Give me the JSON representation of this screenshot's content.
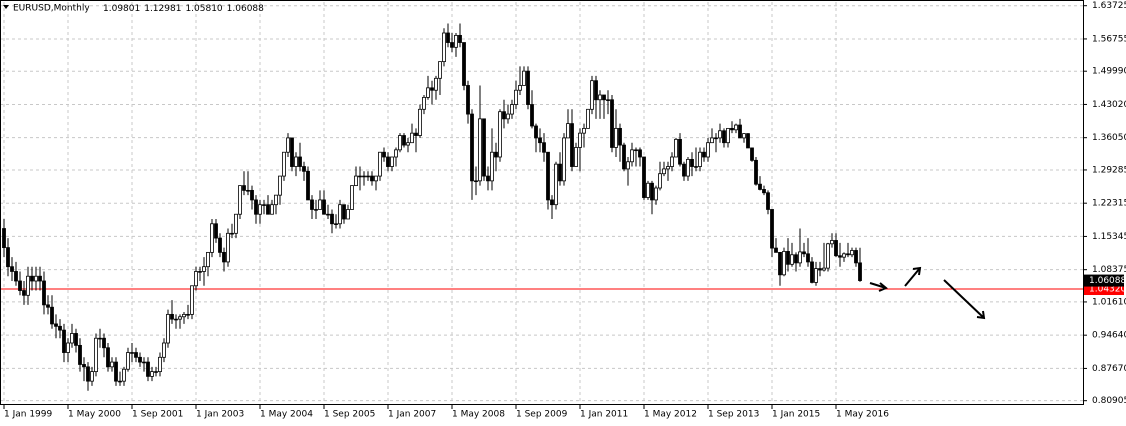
{
  "chart_data": {
    "type": "candlestick",
    "title": "EURUSD,Monthly",
    "header_values": [
      "1.09801",
      "1.12981",
      "1.05810",
      "1.06088"
    ],
    "ylim": [
      0.8,
      1.645
    ],
    "yticks": [
      1.63725,
      1.56755,
      {
        "value": 1.4999,
        "label": "1.49990"
      },
      {
        "value": 1.4302,
        "label": "1.43020"
      },
      {
        "value": 1.3605,
        "label": "1.36050"
      },
      1.29285,
      1.22315,
      1.15345,
      1.08375,
      {
        "value": 1.0161,
        "label": "1.01610"
      },
      {
        "value": 0.9464,
        "label": "0.94640"
      },
      {
        "value": 0.8767,
        "label": "0.87670"
      },
      0.80905
    ],
    "xtick_labels": [
      "1 Jan 1999",
      "1 May 2000",
      "1 Sep 2001",
      "1 Jan 2003",
      "1 May 2004",
      "1 Sep 2005",
      "1 Jan 2007",
      "1 May 2008",
      "1 Sep 2009",
      "1 Jan 2011",
      "1 May 2012",
      "1 Sep 2013",
      "1 Jan 2015",
      "1 May 2016"
    ],
    "grid": true,
    "bull_color": "#ffffff",
    "bear_color": "#000000",
    "last_price": 1.06088,
    "price_line": {
      "value": 1.0432,
      "label": "1.04320",
      "color": "#ff0000"
    },
    "candles": [
      [
        1.17,
        1.19,
        1.11,
        1.13
      ],
      [
        1.13,
        1.15,
        1.07,
        1.09
      ],
      [
        1.09,
        1.11,
        1.06,
        1.08
      ],
      [
        1.08,
        1.1,
        1.05,
        1.06
      ],
      [
        1.06,
        1.08,
        1.03,
        1.04
      ],
      [
        1.04,
        1.06,
        1.01,
        1.03
      ],
      [
        1.03,
        1.09,
        1.01,
        1.07
      ],
      [
        1.07,
        1.09,
        1.04,
        1.06
      ],
      [
        1.06,
        1.09,
        1.04,
        1.07
      ],
      [
        1.07,
        1.09,
        1.04,
        1.06
      ],
      [
        1.06,
        1.08,
        0.99,
        1.01
      ],
      [
        1.01,
        1.03,
        0.99,
        1.005
      ],
      [
        1.005,
        1.03,
        0.96,
        0.97
      ],
      [
        0.97,
        0.99,
        0.94,
        0.965
      ],
      [
        0.965,
        0.98,
        0.94,
        0.957
      ],
      [
        0.957,
        0.97,
        0.89,
        0.91
      ],
      [
        0.91,
        0.94,
        0.89,
        0.93
      ],
      [
        0.93,
        0.97,
        0.92,
        0.95
      ],
      [
        0.95,
        0.96,
        0.91,
        0.925
      ],
      [
        0.925,
        0.94,
        0.87,
        0.885
      ],
      [
        0.885,
        0.9,
        0.85,
        0.88
      ],
      [
        0.88,
        0.89,
        0.83,
        0.85
      ],
      [
        0.85,
        0.88,
        0.84,
        0.87
      ],
      [
        0.87,
        0.95,
        0.86,
        0.94
      ],
      [
        0.94,
        0.96,
        0.92,
        0.94
      ],
      [
        0.94,
        0.95,
        0.9,
        0.92
      ],
      [
        0.92,
        0.93,
        0.87,
        0.88
      ],
      [
        0.88,
        0.9,
        0.87,
        0.89
      ],
      [
        0.89,
        0.9,
        0.84,
        0.85
      ],
      [
        0.85,
        0.87,
        0.84,
        0.85
      ],
      [
        0.85,
        0.88,
        0.84,
        0.875
      ],
      [
        0.875,
        0.92,
        0.87,
        0.91
      ],
      [
        0.91,
        0.93,
        0.89,
        0.91
      ],
      [
        0.91,
        0.92,
        0.89,
        0.9
      ],
      [
        0.9,
        0.91,
        0.88,
        0.89
      ],
      [
        0.89,
        0.9,
        0.87,
        0.89
      ],
      [
        0.89,
        0.9,
        0.85,
        0.86
      ],
      [
        0.86,
        0.88,
        0.85,
        0.87
      ],
      [
        0.87,
        0.88,
        0.86,
        0.87
      ],
      [
        0.87,
        0.91,
        0.86,
        0.9
      ],
      [
        0.9,
        0.94,
        0.89,
        0.93
      ],
      [
        0.93,
        1.0,
        0.92,
        0.99
      ],
      [
        0.99,
        1.02,
        0.97,
        0.98
      ],
      [
        0.98,
        0.99,
        0.96,
        0.98
      ],
      [
        0.98,
        0.99,
        0.96,
        0.985
      ],
      [
        0.985,
        0.995,
        0.97,
        0.99
      ],
      [
        0.99,
        1.01,
        0.98,
        0.99
      ],
      [
        0.99,
        1.05,
        0.98,
        1.05
      ],
      [
        1.05,
        1.09,
        1.04,
        1.08
      ],
      [
        1.08,
        1.09,
        1.06,
        1.08
      ],
      [
        1.08,
        1.11,
        1.05,
        1.09
      ],
      [
        1.09,
        1.12,
        1.07,
        1.12
      ],
      [
        1.12,
        1.19,
        1.11,
        1.18
      ],
      [
        1.18,
        1.19,
        1.14,
        1.15
      ],
      [
        1.15,
        1.16,
        1.11,
        1.12
      ],
      [
        1.12,
        1.13,
        1.08,
        1.1
      ],
      [
        1.1,
        1.17,
        1.09,
        1.16
      ],
      [
        1.16,
        1.18,
        1.15,
        1.16
      ],
      [
        1.16,
        1.2,
        1.15,
        1.2
      ],
      [
        1.2,
        1.26,
        1.19,
        1.26
      ],
      [
        1.26,
        1.29,
        1.24,
        1.25
      ],
      [
        1.25,
        1.29,
        1.24,
        1.25
      ],
      [
        1.25,
        1.26,
        1.21,
        1.23
      ],
      [
        1.23,
        1.24,
        1.18,
        1.2
      ],
      [
        1.2,
        1.23,
        1.18,
        1.22
      ],
      [
        1.22,
        1.23,
        1.2,
        1.22
      ],
      [
        1.22,
        1.24,
        1.2,
        1.2
      ],
      [
        1.2,
        1.23,
        1.2,
        1.22
      ],
      [
        1.22,
        1.24,
        1.2,
        1.24
      ],
      [
        1.24,
        1.28,
        1.22,
        1.28
      ],
      [
        1.28,
        1.33,
        1.27,
        1.33
      ],
      [
        1.33,
        1.37,
        1.32,
        1.36
      ],
      [
        1.36,
        1.36,
        1.29,
        1.3
      ],
      [
        1.3,
        1.33,
        1.28,
        1.32
      ],
      [
        1.32,
        1.35,
        1.29,
        1.3
      ],
      [
        1.3,
        1.31,
        1.27,
        1.29
      ],
      [
        1.29,
        1.3,
        1.23,
        1.23
      ],
      [
        1.23,
        1.24,
        1.19,
        1.21
      ],
      [
        1.21,
        1.23,
        1.19,
        1.21
      ],
      [
        1.21,
        1.25,
        1.21,
        1.23
      ],
      [
        1.23,
        1.25,
        1.2,
        1.2
      ],
      [
        1.2,
        1.22,
        1.19,
        1.2
      ],
      [
        1.2,
        1.21,
        1.16,
        1.18
      ],
      [
        1.18,
        1.2,
        1.17,
        1.18
      ],
      [
        1.18,
        1.23,
        1.17,
        1.22
      ],
      [
        1.22,
        1.22,
        1.18,
        1.19
      ],
      [
        1.19,
        1.22,
        1.19,
        1.21
      ],
      [
        1.21,
        1.26,
        1.21,
        1.26
      ],
      [
        1.26,
        1.3,
        1.26,
        1.28
      ],
      [
        1.28,
        1.3,
        1.25,
        1.28
      ],
      [
        1.28,
        1.29,
        1.26,
        1.28
      ],
      [
        1.28,
        1.29,
        1.27,
        1.28
      ],
      [
        1.28,
        1.29,
        1.26,
        1.27
      ],
      [
        1.27,
        1.28,
        1.25,
        1.28
      ],
      [
        1.28,
        1.33,
        1.27,
        1.33
      ],
      [
        1.33,
        1.34,
        1.31,
        1.32
      ],
      [
        1.32,
        1.33,
        1.29,
        1.3
      ],
      [
        1.3,
        1.32,
        1.29,
        1.32
      ],
      [
        1.32,
        1.34,
        1.3,
        1.335
      ],
      [
        1.335,
        1.37,
        1.33,
        1.365
      ],
      [
        1.365,
        1.37,
        1.34,
        1.345
      ],
      [
        1.345,
        1.36,
        1.33,
        1.35
      ],
      [
        1.35,
        1.39,
        1.35,
        1.37
      ],
      [
        1.37,
        1.38,
        1.33,
        1.365
      ],
      [
        1.365,
        1.43,
        1.36,
        1.42
      ],
      [
        1.42,
        1.45,
        1.41,
        1.445
      ],
      [
        1.445,
        1.49,
        1.44,
        1.465
      ],
      [
        1.465,
        1.48,
        1.43,
        1.46
      ],
      [
        1.46,
        1.49,
        1.44,
        1.485
      ],
      [
        1.485,
        1.52,
        1.45,
        1.52
      ],
      [
        1.52,
        1.59,
        1.51,
        1.58
      ],
      [
        1.58,
        1.6,
        1.55,
        1.56
      ],
      [
        1.56,
        1.58,
        1.54,
        1.55
      ],
      [
        1.55,
        1.58,
        1.53,
        1.575
      ],
      [
        1.575,
        1.6,
        1.55,
        1.56
      ],
      [
        1.56,
        1.56,
        1.46,
        1.47
      ],
      [
        1.47,
        1.48,
        1.39,
        1.41
      ],
      [
        1.41,
        1.42,
        1.23,
        1.27
      ],
      [
        1.27,
        1.3,
        1.24,
        1.27
      ],
      [
        1.27,
        1.47,
        1.26,
        1.4
      ],
      [
        1.4,
        1.4,
        1.27,
        1.28
      ],
      [
        1.28,
        1.3,
        1.25,
        1.27
      ],
      [
        1.27,
        1.38,
        1.25,
        1.33
      ],
      [
        1.33,
        1.35,
        1.29,
        1.32
      ],
      [
        1.32,
        1.42,
        1.31,
        1.415
      ],
      [
        1.415,
        1.44,
        1.38,
        1.4
      ],
      [
        1.4,
        1.43,
        1.39,
        1.41
      ],
      [
        1.41,
        1.44,
        1.4,
        1.43
      ],
      [
        1.43,
        1.48,
        1.42,
        1.46
      ],
      [
        1.46,
        1.51,
        1.45,
        1.47
      ],
      [
        1.47,
        1.51,
        1.47,
        1.5
      ],
      [
        1.5,
        1.51,
        1.42,
        1.43
      ],
      [
        1.43,
        1.46,
        1.38,
        1.385
      ],
      [
        1.385,
        1.39,
        1.33,
        1.36
      ],
      [
        1.36,
        1.38,
        1.33,
        1.35
      ],
      [
        1.35,
        1.37,
        1.31,
        1.33
      ],
      [
        1.33,
        1.33,
        1.21,
        1.23
      ],
      [
        1.23,
        1.24,
        1.19,
        1.22
      ],
      [
        1.22,
        1.31,
        1.21,
        1.305
      ],
      [
        1.305,
        1.33,
        1.26,
        1.27
      ],
      [
        1.27,
        1.37,
        1.26,
        1.36
      ],
      [
        1.36,
        1.42,
        1.36,
        1.39
      ],
      [
        1.39,
        1.42,
        1.29,
        1.3
      ],
      [
        1.3,
        1.35,
        1.3,
        1.34
      ],
      [
        1.34,
        1.38,
        1.29,
        1.37
      ],
      [
        1.37,
        1.39,
        1.34,
        1.38
      ],
      [
        1.38,
        1.42,
        1.38,
        1.42
      ],
      [
        1.42,
        1.49,
        1.41,
        1.48
      ],
      [
        1.48,
        1.49,
        1.4,
        1.44
      ],
      [
        1.44,
        1.46,
        1.4,
        1.45
      ],
      [
        1.45,
        1.45,
        1.4,
        1.44
      ],
      [
        1.44,
        1.46,
        1.41,
        1.44
      ],
      [
        1.44,
        1.45,
        1.33,
        1.34
      ],
      [
        1.34,
        1.42,
        1.32,
        1.38
      ],
      [
        1.38,
        1.39,
        1.31,
        1.345
      ],
      [
        1.345,
        1.35,
        1.29,
        1.295
      ],
      [
        1.295,
        1.32,
        1.26,
        1.31
      ],
      [
        1.31,
        1.35,
        1.3,
        1.335
      ],
      [
        1.335,
        1.34,
        1.3,
        1.335
      ],
      [
        1.335,
        1.34,
        1.3,
        1.32
      ],
      [
        1.32,
        1.32,
        1.23,
        1.235
      ],
      [
        1.235,
        1.27,
        1.23,
        1.265
      ],
      [
        1.265,
        1.27,
        1.2,
        1.23
      ],
      [
        1.23,
        1.26,
        1.22,
        1.255
      ],
      [
        1.255,
        1.31,
        1.25,
        1.285
      ],
      [
        1.285,
        1.31,
        1.28,
        1.295
      ],
      [
        1.295,
        1.31,
        1.27,
        1.3
      ],
      [
        1.3,
        1.33,
        1.29,
        1.32
      ],
      [
        1.32,
        1.36,
        1.32,
        1.357
      ],
      [
        1.357,
        1.37,
        1.3,
        1.305
      ],
      [
        1.305,
        1.31,
        1.27,
        1.28
      ],
      [
        1.28,
        1.32,
        1.27,
        1.315
      ],
      [
        1.315,
        1.33,
        1.28,
        1.3
      ],
      [
        1.3,
        1.34,
        1.29,
        1.3
      ],
      [
        1.3,
        1.34,
        1.29,
        1.33
      ],
      [
        1.33,
        1.34,
        1.31,
        1.32
      ],
      [
        1.32,
        1.36,
        1.31,
        1.35
      ],
      [
        1.35,
        1.38,
        1.35,
        1.36
      ],
      [
        1.36,
        1.37,
        1.33,
        1.36
      ],
      [
        1.36,
        1.39,
        1.35,
        1.375
      ],
      [
        1.375,
        1.38,
        1.34,
        1.35
      ],
      [
        1.35,
        1.38,
        1.34,
        1.38
      ],
      [
        1.38,
        1.395,
        1.37,
        1.377
      ],
      [
        1.377,
        1.39,
        1.37,
        1.387
      ],
      [
        1.387,
        1.4,
        1.36,
        1.36
      ],
      [
        1.36,
        1.37,
        1.35,
        1.369
      ],
      [
        1.369,
        1.37,
        1.34,
        1.339
      ],
      [
        1.339,
        1.34,
        1.31,
        1.313
      ],
      [
        1.313,
        1.32,
        1.26,
        1.263
      ],
      [
        1.263,
        1.28,
        1.25,
        1.252
      ],
      [
        1.252,
        1.26,
        1.24,
        1.245
      ],
      [
        1.245,
        1.25,
        1.2,
        1.21
      ],
      [
        1.21,
        1.21,
        1.11,
        1.129
      ],
      [
        1.129,
        1.15,
        1.12,
        1.12
      ],
      [
        1.12,
        1.12,
        1.05,
        1.073
      ],
      [
        1.073,
        1.13,
        1.07,
        1.122
      ],
      [
        1.122,
        1.15,
        1.08,
        1.095
      ],
      [
        1.095,
        1.14,
        1.09,
        1.115
      ],
      [
        1.115,
        1.12,
        1.08,
        1.098
      ],
      [
        1.098,
        1.17,
        1.09,
        1.121
      ],
      [
        1.121,
        1.14,
        1.11,
        1.117
      ],
      [
        1.117,
        1.15,
        1.09,
        1.1
      ],
      [
        1.1,
        1.11,
        1.055,
        1.057
      ],
      [
        1.057,
        1.1,
        1.05,
        1.086
      ],
      [
        1.086,
        1.1,
        1.07,
        1.083
      ],
      [
        1.083,
        1.14,
        1.08,
        1.087
      ],
      [
        1.087,
        1.14,
        1.08,
        1.138
      ],
      [
        1.138,
        1.16,
        1.13,
        1.145
      ],
      [
        1.145,
        1.16,
        1.11,
        1.113
      ],
      [
        1.113,
        1.14,
        1.09,
        1.11
      ],
      [
        1.11,
        1.12,
        1.1,
        1.117
      ],
      [
        1.117,
        1.14,
        1.11,
        1.115
      ],
      [
        1.115,
        1.13,
        1.11,
        1.124
      ],
      [
        1.124,
        1.13,
        1.09,
        1.098
      ],
      [
        1.09801,
        1.12981,
        1.0581,
        1.06088
      ]
    ]
  }
}
